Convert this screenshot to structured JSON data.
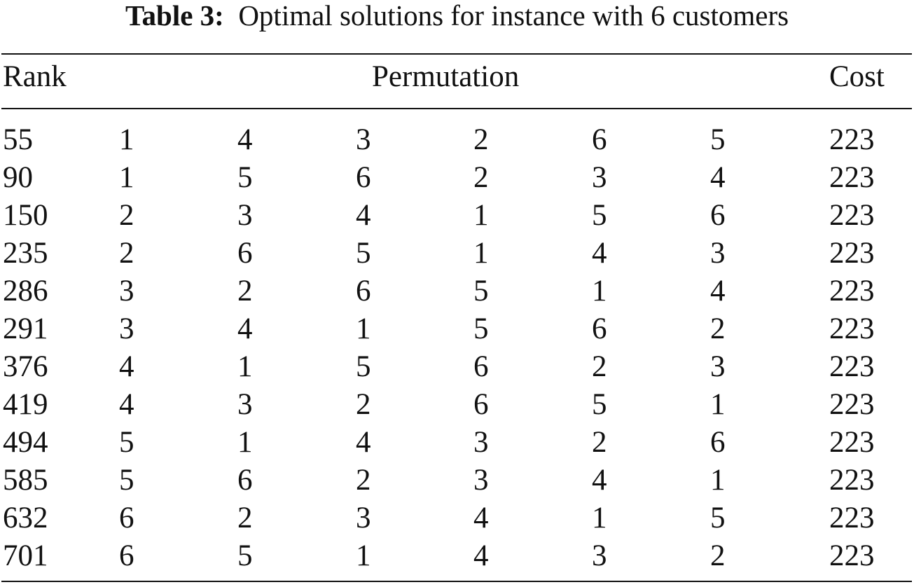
{
  "caption": {
    "label": "Table 3:",
    "text": "Optimal solutions for instance with 6 customers"
  },
  "table": {
    "headers": {
      "rank": "Rank",
      "permutation": "Permutation",
      "cost": "Cost"
    },
    "rows": [
      {
        "rank": "55",
        "perm": [
          "1",
          "4",
          "3",
          "2",
          "6",
          "5"
        ],
        "cost": "223"
      },
      {
        "rank": "90",
        "perm": [
          "1",
          "5",
          "6",
          "2",
          "3",
          "4"
        ],
        "cost": "223"
      },
      {
        "rank": "150",
        "perm": [
          "2",
          "3",
          "4",
          "1",
          "5",
          "6"
        ],
        "cost": "223"
      },
      {
        "rank": "235",
        "perm": [
          "2",
          "6",
          "5",
          "1",
          "4",
          "3"
        ],
        "cost": "223"
      },
      {
        "rank": "286",
        "perm": [
          "3",
          "2",
          "6",
          "5",
          "1",
          "4"
        ],
        "cost": "223"
      },
      {
        "rank": "291",
        "perm": [
          "3",
          "4",
          "1",
          "5",
          "6",
          "2"
        ],
        "cost": "223"
      },
      {
        "rank": "376",
        "perm": [
          "4",
          "1",
          "5",
          "6",
          "2",
          "3"
        ],
        "cost": "223"
      },
      {
        "rank": "419",
        "perm": [
          "4",
          "3",
          "2",
          "6",
          "5",
          "1"
        ],
        "cost": "223"
      },
      {
        "rank": "494",
        "perm": [
          "5",
          "1",
          "4",
          "3",
          "2",
          "6"
        ],
        "cost": "223"
      },
      {
        "rank": "585",
        "perm": [
          "5",
          "6",
          "2",
          "3",
          "4",
          "1"
        ],
        "cost": "223"
      },
      {
        "rank": "632",
        "perm": [
          "6",
          "2",
          "3",
          "4",
          "1",
          "5"
        ],
        "cost": "223"
      },
      {
        "rank": "701",
        "perm": [
          "6",
          "5",
          "1",
          "4",
          "3",
          "2"
        ],
        "cost": "223"
      }
    ]
  }
}
